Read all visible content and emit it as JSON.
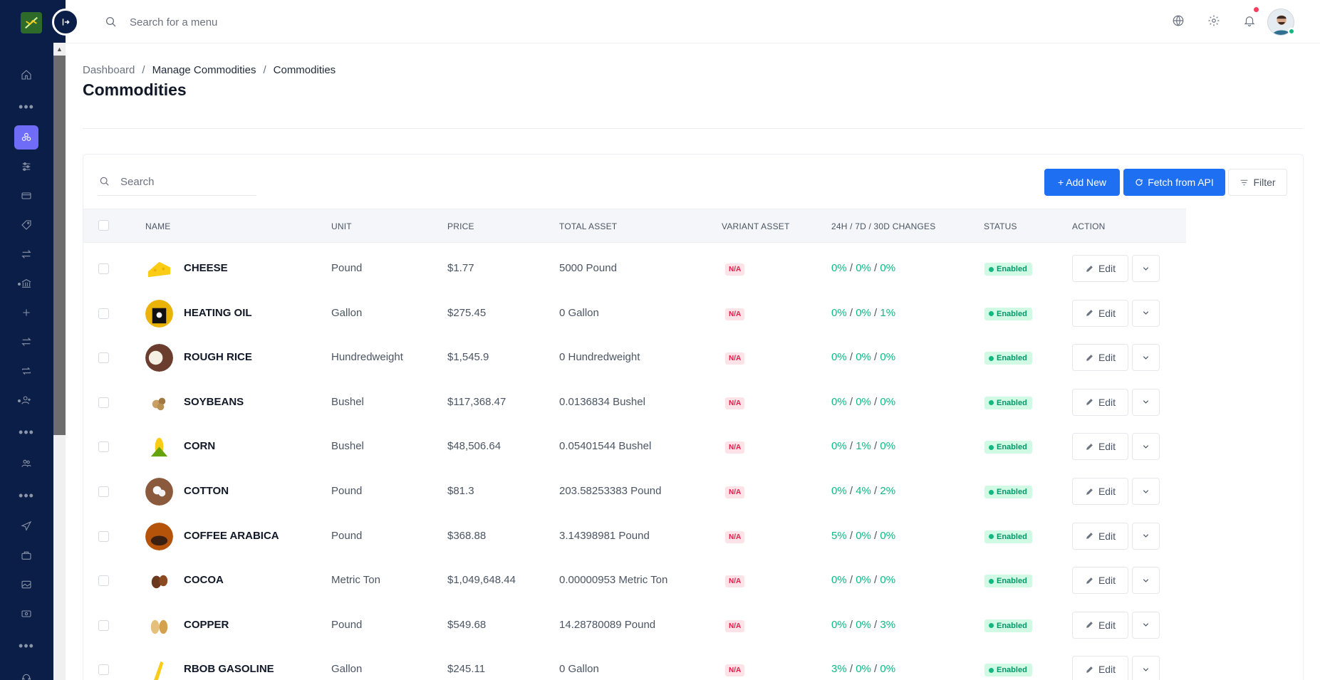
{
  "topbar": {
    "search_placeholder": "Search for a menu"
  },
  "breadcrumb": [
    "Dashboard",
    "Manage Commodities",
    "Commodities"
  ],
  "page_title": "Commodities",
  "toolbar": {
    "search_placeholder": "Search",
    "add_new_label": "+ Add New",
    "fetch_label": "Fetch from API",
    "filter_label": "Filter"
  },
  "table": {
    "headers": {
      "name": "NAME",
      "unit": "UNIT",
      "price": "PRICE",
      "total_asset": "TOTAL ASSET",
      "variant_asset": "VARIANT ASSET",
      "changes": "24H / 7D / 30D CHANGES",
      "status": "STATUS",
      "action": "ACTION"
    },
    "rows": [
      {
        "name": "CHEESE",
        "unit": "Pound",
        "price": "$1.77",
        "total_asset": "5000 Pound",
        "variant": "N/A",
        "c24h": "0%",
        "c7d": "0%",
        "c30d": "0%",
        "status": "Enabled",
        "edit": "Edit"
      },
      {
        "name": "HEATING OIL",
        "unit": "Gallon",
        "price": "$275.45",
        "total_asset": "0 Gallon",
        "variant": "N/A",
        "c24h": "0%",
        "c7d": "0%",
        "c30d": "1%",
        "status": "Enabled",
        "edit": "Edit"
      },
      {
        "name": "ROUGH RICE",
        "unit": "Hundredweight",
        "price": "$1,545.9",
        "total_asset": "0 Hundredweight",
        "variant": "N/A",
        "c24h": "0%",
        "c7d": "0%",
        "c30d": "0%",
        "status": "Enabled",
        "edit": "Edit"
      },
      {
        "name": "SOYBEANS",
        "unit": "Bushel",
        "price": "$117,368.47",
        "total_asset": "0.0136834 Bushel",
        "variant": "N/A",
        "c24h": "0%",
        "c7d": "0%",
        "c30d": "0%",
        "status": "Enabled",
        "edit": "Edit"
      },
      {
        "name": "CORN",
        "unit": "Bushel",
        "price": "$48,506.64",
        "total_asset": "0.05401544 Bushel",
        "variant": "N/A",
        "c24h": "0%",
        "c7d": "1%",
        "c30d": "0%",
        "status": "Enabled",
        "edit": "Edit"
      },
      {
        "name": "COTTON",
        "unit": "Pound",
        "price": "$81.3",
        "total_asset": "203.58253383 Pound",
        "variant": "N/A",
        "c24h": "0%",
        "c7d": "4%",
        "c30d": "2%",
        "status": "Enabled",
        "edit": "Edit"
      },
      {
        "name": "COFFEE ARABICA",
        "unit": "Pound",
        "price": "$368.88",
        "total_asset": "3.14398981 Pound",
        "variant": "N/A",
        "c24h": "5%",
        "c7d": "0%",
        "c30d": "0%",
        "status": "Enabled",
        "edit": "Edit"
      },
      {
        "name": "COCOA",
        "unit": "Metric Ton",
        "price": "$1,049,648.44",
        "total_asset": "0.00000953 Metric Ton",
        "variant": "N/A",
        "c24h": "0%",
        "c7d": "0%",
        "c30d": "0%",
        "status": "Enabled",
        "edit": "Edit"
      },
      {
        "name": "COPPER",
        "unit": "Pound",
        "price": "$549.68",
        "total_asset": "14.28780089 Pound",
        "variant": "N/A",
        "c24h": "0%",
        "c7d": "0%",
        "c30d": "3%",
        "status": "Enabled",
        "edit": "Edit"
      },
      {
        "name": "RBOB GASOLINE",
        "unit": "Gallon",
        "price": "$245.11",
        "total_asset": "0 Gallon",
        "variant": "N/A",
        "c24h": "3%",
        "c7d": "0%",
        "c30d": "0%",
        "status": "Enabled",
        "edit": "Edit"
      }
    ]
  },
  "colors": {
    "sidebar_bg": "#0b1e47",
    "primary": "#1f6ff2",
    "active_nav": "#6f6df7",
    "positive": "#10b981",
    "na_badge": "#e11d48"
  }
}
